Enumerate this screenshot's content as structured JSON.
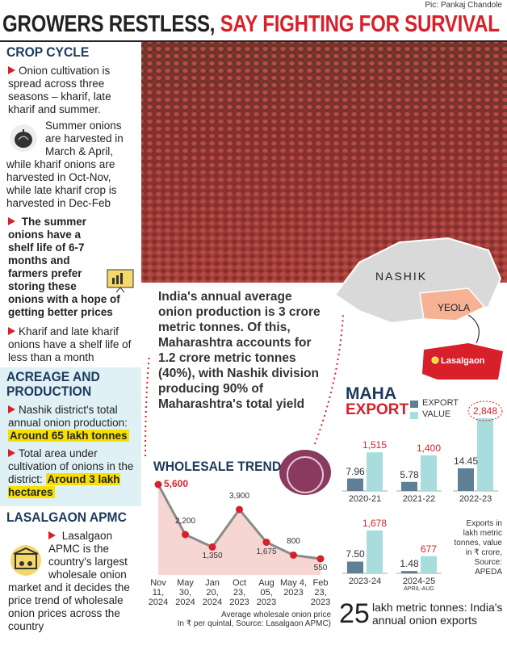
{
  "credit": "Pic: Pankaj Chandole",
  "headline": {
    "part1": "GROWERS RESTLESS,",
    "part2": "SAY FIGHTING FOR SURVIVAL"
  },
  "sidebar": {
    "crop_cycle": {
      "heading": "CROP CYCLE",
      "bullet1": "Onion cultivation is spread across three seasons – kharif, late kharif and summer.",
      "harvest": "Summer onions are harvested in March & April, while kharif onions are harvested in Oct-Nov, while late kharif crop is harvested in Dec-Feb",
      "bullet2": "The summer onions have a shelf life of 6-7 months and farmers prefer storing these onions with a hope of getting better prices",
      "bullet3": "Kharif and late kharif onions have a shelf life of less than a month"
    },
    "acreage": {
      "heading": "ACREAGE AND PRODUCTION",
      "bullet1": "Nashik district's total annual onion production:",
      "highlight1": "Around 65 lakh tonnes",
      "bullet2": "Total area under cultivation of onions in the district:",
      "highlight2": "Around 3 lakh hectares"
    },
    "lasalgaon": {
      "heading": "LASALGAON APMC",
      "bullet1": "Lasalgaon APMC is the country's largest wholesale onion market and it decides the price trend of wholesale onion prices across the country"
    }
  },
  "callout": "India's annual average onion production is 3 crore metric tonnes. Of this, Maharashtra accounts for 1.2 crore metric tonnes (40%), with Nashik division producing 90% of Maharashtra's total yield",
  "map": {
    "region": "NASHIK",
    "taluka": "YEOLA",
    "market": "Lasalgaon"
  },
  "chart_data": [
    {
      "type": "line",
      "title": "WHOLESALE TREND",
      "categories": [
        "Nov 11, 2024",
        "May 30, 2024",
        "Jan 20, 2024",
        "Oct 23, 2023",
        "Aug 05, 2023",
        "May 4, 2023",
        "Feb 23, 2023"
      ],
      "values": [
        5600,
        2200,
        1350,
        3900,
        1675,
        800,
        550
      ],
      "value_labels": [
        "5,600",
        "2,200",
        "1,350",
        "3,900",
        "1,675",
        "800",
        "550"
      ],
      "color": "#d7202a",
      "area_color": "#f6d6d3",
      "caption": "Average wholesale onion price",
      "source": "In ₹ per quintal, Source: Lasalgaon APMC)"
    },
    {
      "type": "bar",
      "title": "MAHA",
      "subtitle": "EXPORT",
      "categories": [
        "2020-21",
        "2021-22",
        "2022-23",
        "2023-24",
        "2024-25"
      ],
      "period_note": "APRIL-AUG",
      "series": [
        {
          "name": "EXPORT",
          "color": "#5f7f96",
          "values": [
            7.96,
            5.78,
            14.45,
            7.5,
            1.48
          ],
          "value_labels": [
            "7.96",
            "5.78",
            "14.45",
            "7.50",
            "1.48"
          ]
        },
        {
          "name": "VALUE",
          "color": "#a9dcdc",
          "axis": "y2",
          "values": [
            1515,
            1400,
            2848,
            1678,
            677
          ],
          "value_labels": [
            "1,515",
            "1,400",
            "2,848",
            "1,678",
            "677"
          ]
        }
      ],
      "note": "Exports in lakh metric tonnes, value in ₹ crore, Source: APEDA"
    }
  ],
  "footer": {
    "number": "25",
    "text": "lakh metric tonnes: India's annual onion exports"
  }
}
